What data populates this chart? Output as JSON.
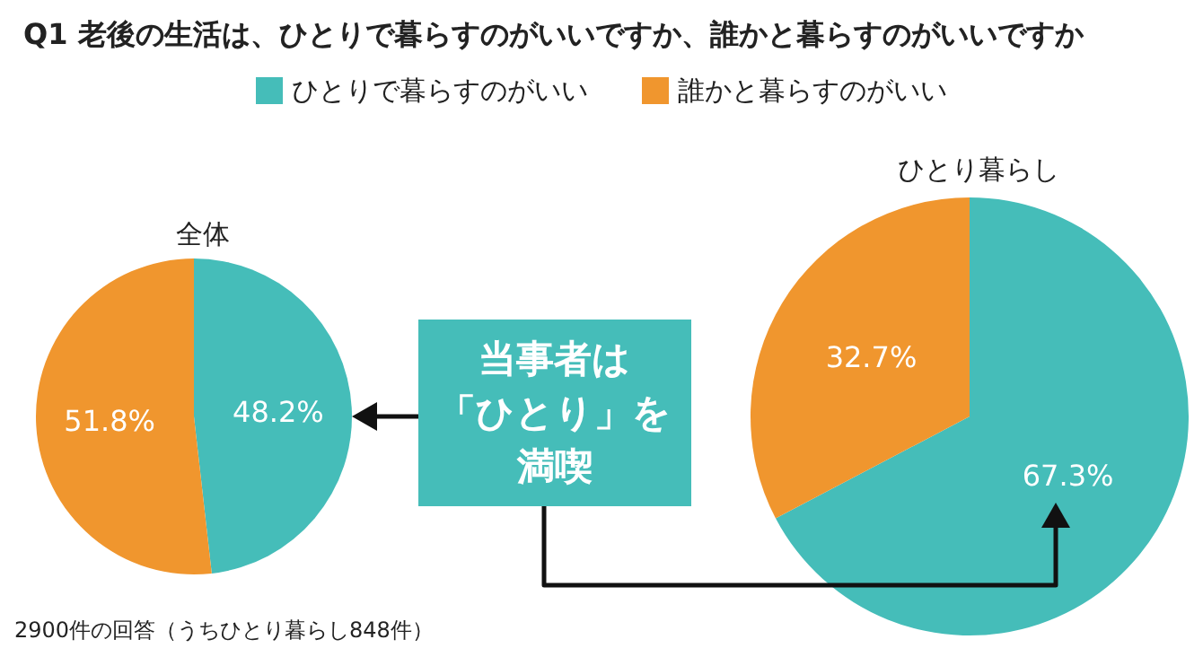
{
  "chart_data": {
    "type": "pie",
    "title": "Q1 老後の生活は、ひとりで暮らすのがいいですか、誰かと暮らすのがいいですか",
    "categories": [
      "ひとりで暮らすのがいい",
      "誰かと暮らすのがいい"
    ],
    "colors": [
      "#45bdb9",
      "#f0962e"
    ],
    "legend": "top",
    "annotations": [
      "当事者は",
      "「ひとり」を",
      "満喫",
      "2900件の回答（うちひとり暮らし848件）"
    ],
    "series": [
      {
        "name": "全体",
        "values": [
          48.2,
          51.8
        ],
        "value_labels": [
          "48.2%",
          "51.8%"
        ]
      },
      {
        "name": "ひとり暮らし",
        "values": [
          67.3,
          32.7
        ],
        "value_labels": [
          "67.3%",
          "32.7%"
        ]
      }
    ]
  }
}
